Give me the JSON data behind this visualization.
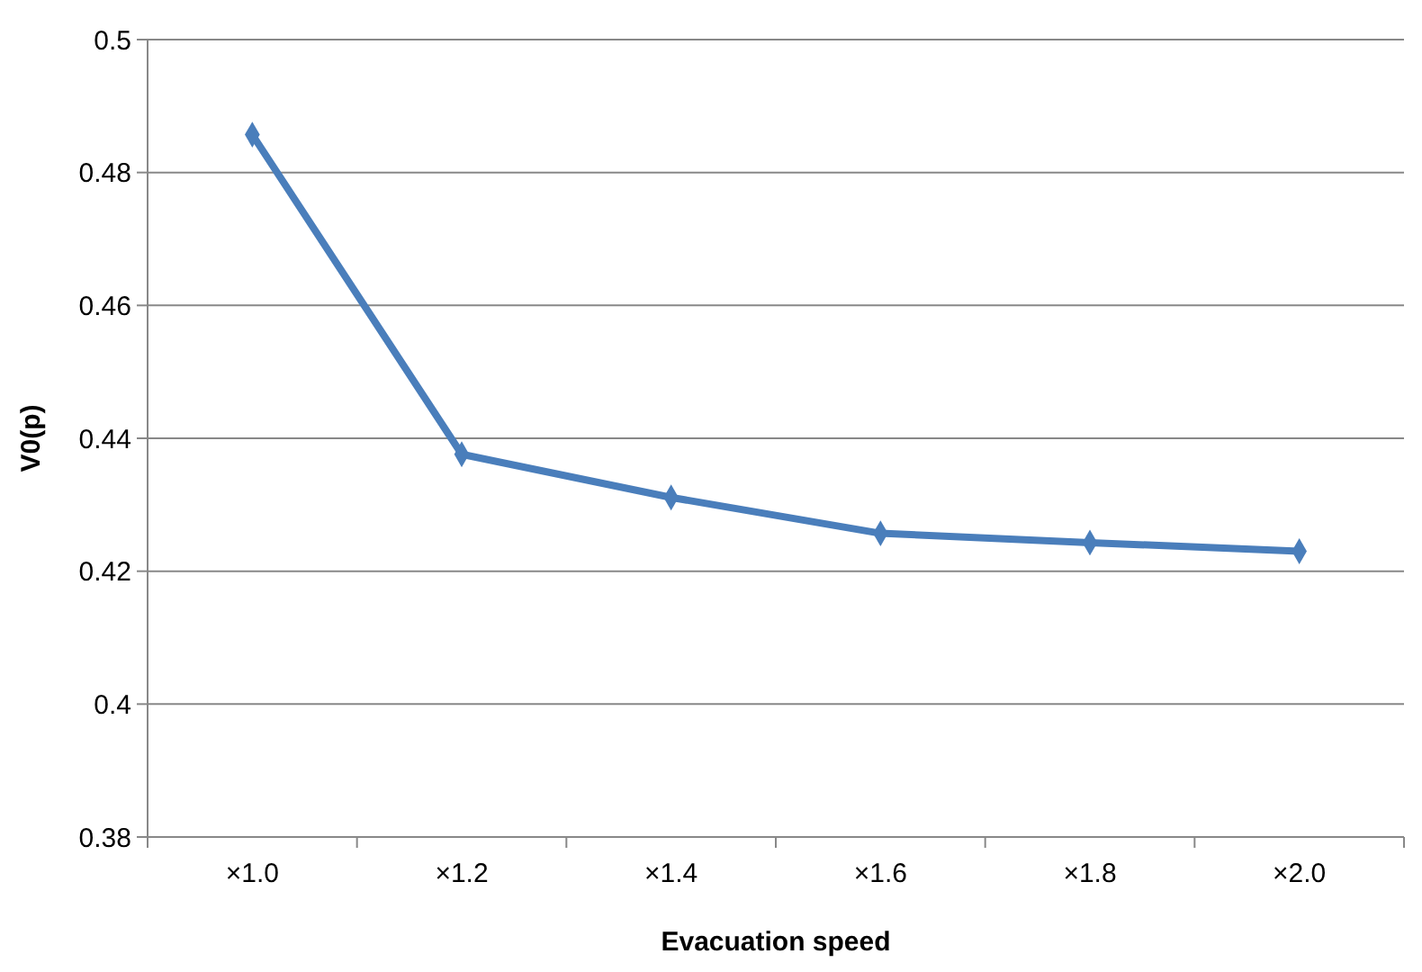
{
  "chart_data": {
    "type": "line",
    "xlabel": "Evacuation speed",
    "ylabel": "V0(p)",
    "categories": [
      "×1.0",
      "×1.2",
      "×1.4",
      "×1.6",
      "×1.8",
      "×2.0"
    ],
    "series": [
      {
        "color": "#4a7ebb",
        "values": [
          0.4857,
          0.4376,
          0.4311,
          0.4257,
          0.4243,
          0.423
        ]
      }
    ],
    "ylim": [
      0.38,
      0.5
    ],
    "yticks": [
      0.38,
      0.4,
      0.42,
      0.44,
      0.46,
      0.48,
      0.5
    ],
    "grid": "y",
    "marker": "diamond",
    "line_style": "solid"
  }
}
